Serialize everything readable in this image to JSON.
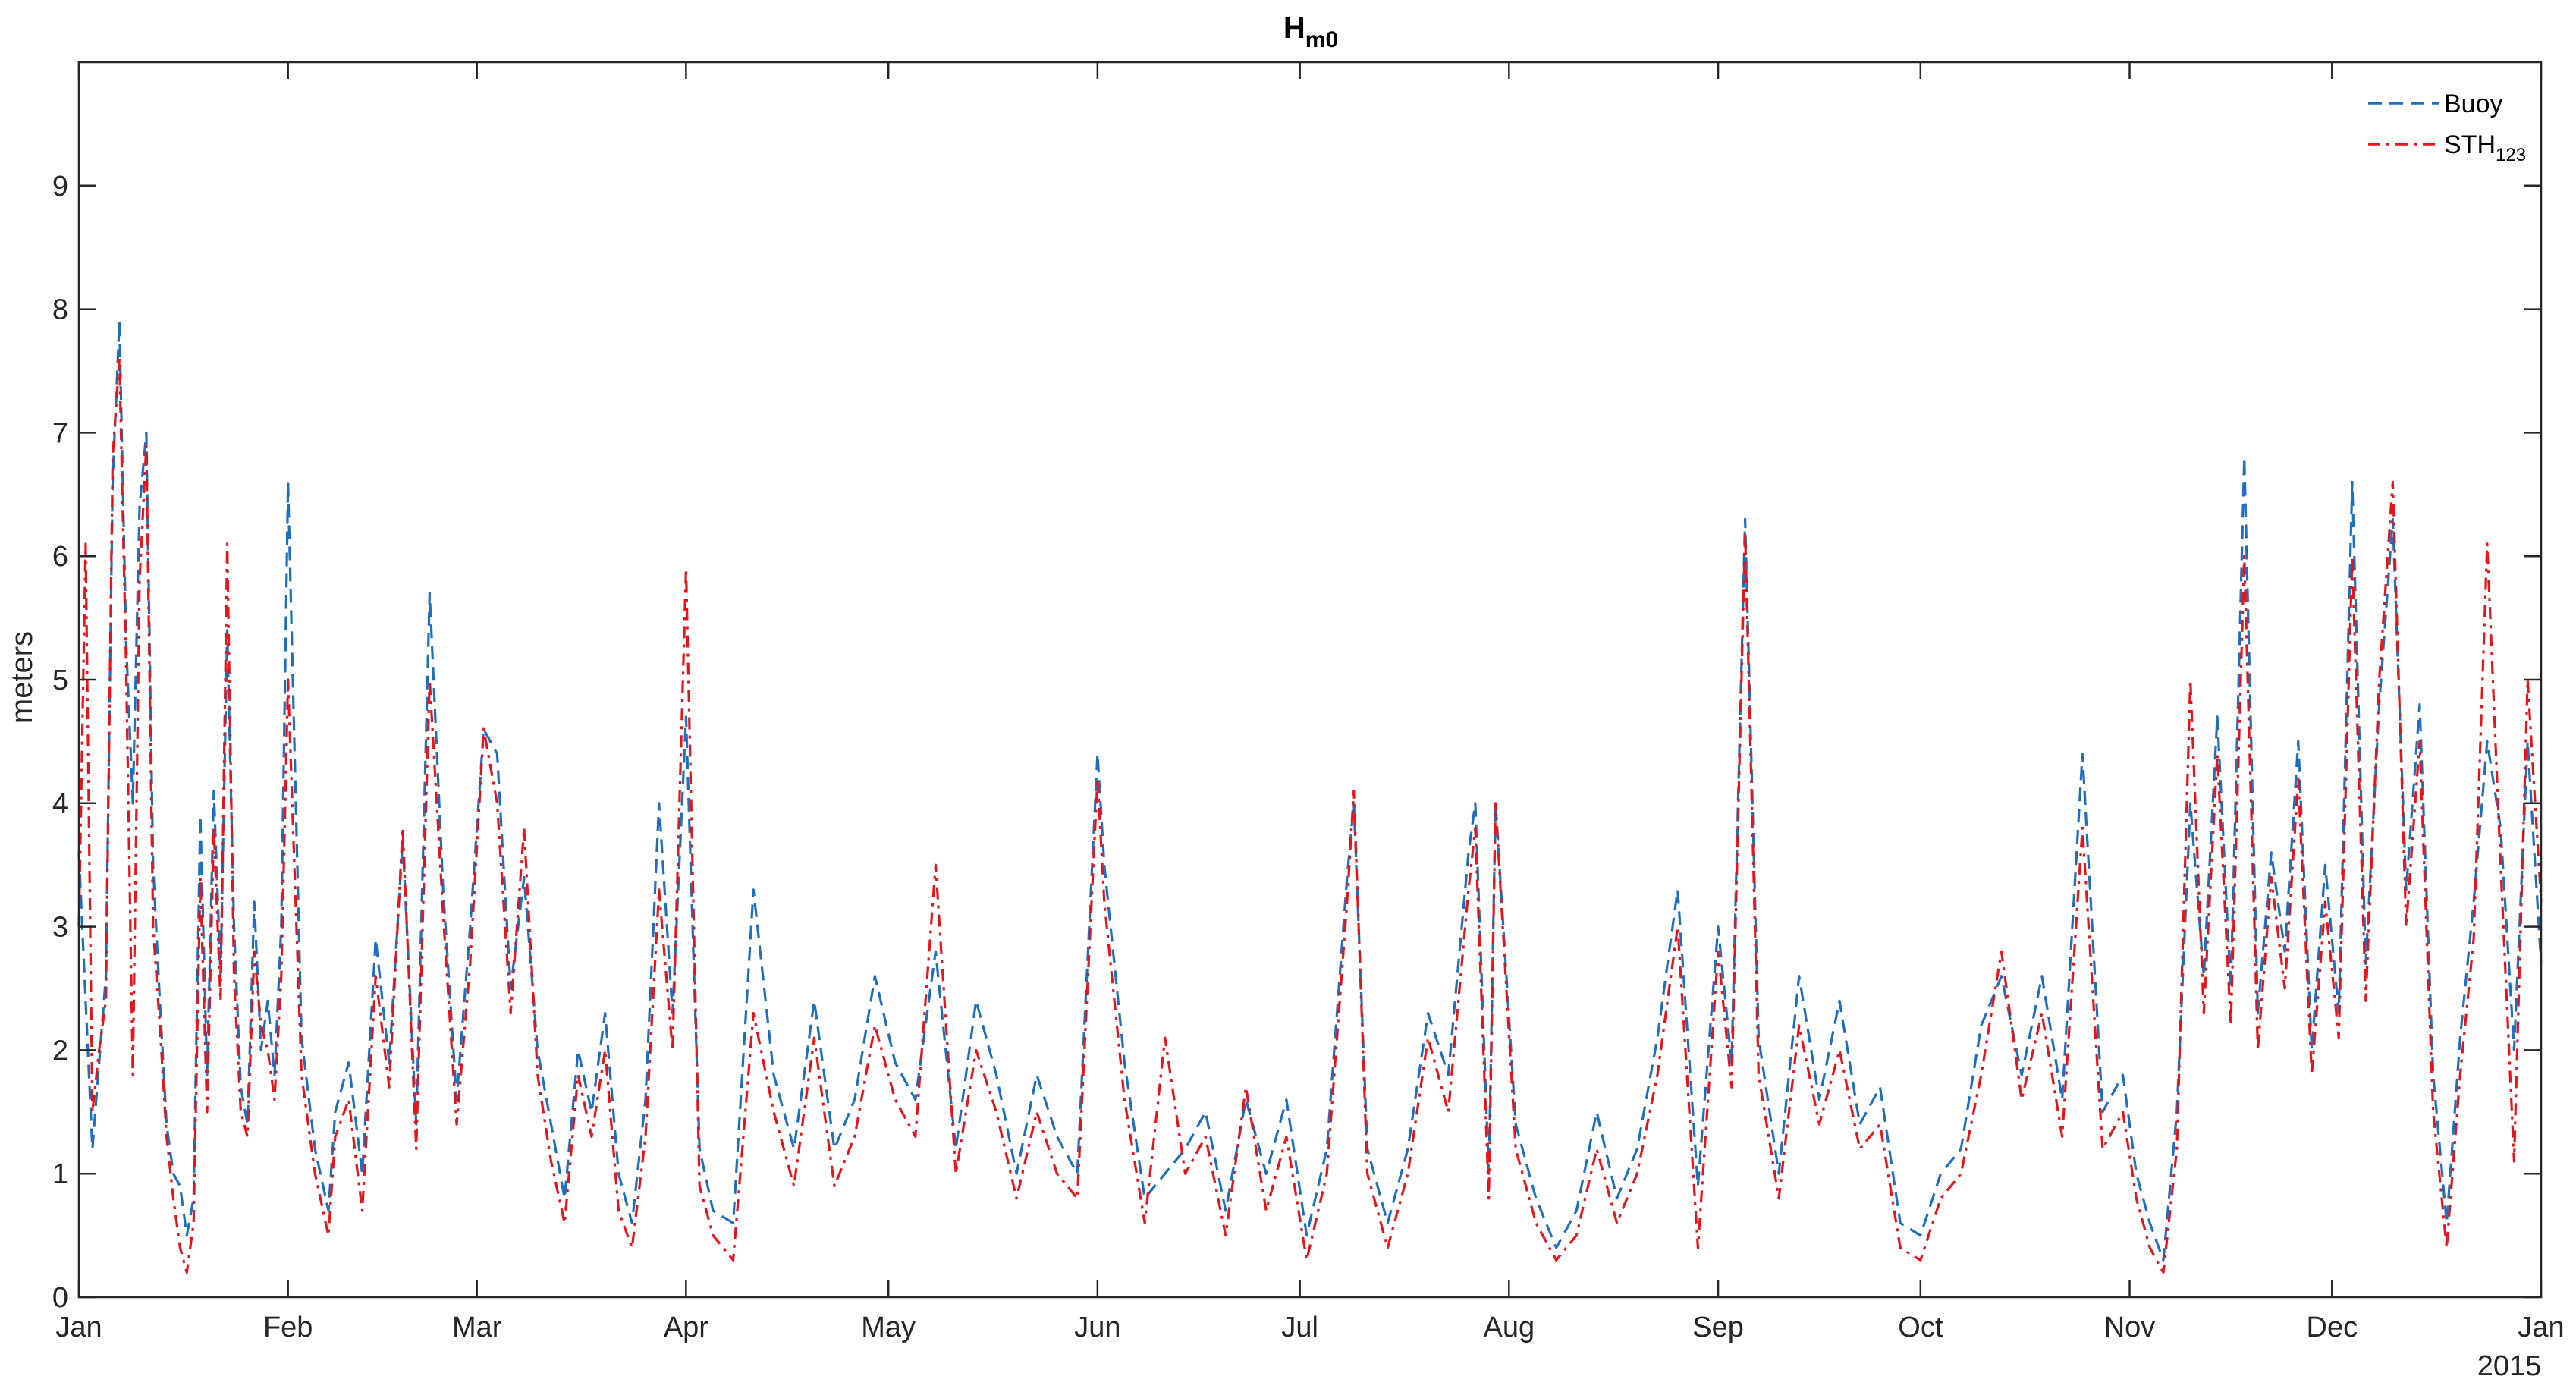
{
  "chart_data": {
    "type": "line",
    "title": "H",
    "title_subscript": "m0",
    "xlabel": "",
    "ylabel": "meters",
    "xlim": [
      "2015-01-01",
      "2016-01-01"
    ],
    "ylim": [
      0,
      10
    ],
    "yticks": [
      0,
      1,
      2,
      3,
      4,
      5,
      6,
      7,
      8,
      9
    ],
    "xticks": [
      {
        "date": "2015-01-01",
        "label": "Jan"
      },
      {
        "date": "2015-02-01",
        "label": "Feb"
      },
      {
        "date": "2015-03-01",
        "label": "Mar"
      },
      {
        "date": "2015-04-01",
        "label": "Apr"
      },
      {
        "date": "2015-05-01",
        "label": "May"
      },
      {
        "date": "2015-06-01",
        "label": "Jun"
      },
      {
        "date": "2015-07-01",
        "label": "Jul"
      },
      {
        "date": "2015-08-01",
        "label": "Aug"
      },
      {
        "date": "2015-09-01",
        "label": "Sep"
      },
      {
        "date": "2015-10-01",
        "label": "Oct"
      },
      {
        "date": "2015-11-01",
        "label": "Nov"
      },
      {
        "date": "2015-12-01",
        "label": "Dec"
      },
      {
        "date": "2016-01-01",
        "label": "Jan"
      }
    ],
    "year_label": "2015",
    "grid": false,
    "legend_position": "top-right",
    "series": [
      {
        "name": "Buoy",
        "legend_label": "Buoy",
        "color": "#1f6fc0",
        "line_style": "dashed",
        "x": [
          "2015-01-01",
          "2015-01-02",
          "2015-01-03",
          "2015-01-04",
          "2015-01-05",
          "2015-01-06",
          "2015-01-07",
          "2015-01-08",
          "2015-01-09",
          "2015-01-10",
          "2015-01-11",
          "2015-01-12",
          "2015-01-13",
          "2015-01-14",
          "2015-01-15",
          "2015-01-16",
          "2015-01-17",
          "2015-01-18",
          "2015-01-19",
          "2015-01-20",
          "2015-01-21",
          "2015-01-22",
          "2015-01-23",
          "2015-01-24",
          "2015-01-25",
          "2015-01-26",
          "2015-01-27",
          "2015-01-28",
          "2015-01-29",
          "2015-01-30",
          "2015-01-31",
          "2015-02-01",
          "2015-02-03",
          "2015-02-05",
          "2015-02-07",
          "2015-02-08",
          "2015-02-10",
          "2015-02-12",
          "2015-02-14",
          "2015-02-16",
          "2015-02-18",
          "2015-02-20",
          "2015-02-22",
          "2015-02-24",
          "2015-02-26",
          "2015-02-28",
          "2015-03-02",
          "2015-03-04",
          "2015-03-06",
          "2015-03-08",
          "2015-03-10",
          "2015-03-12",
          "2015-03-14",
          "2015-03-16",
          "2015-03-18",
          "2015-03-20",
          "2015-03-22",
          "2015-03-24",
          "2015-03-26",
          "2015-03-28",
          "2015-03-30",
          "2015-04-01",
          "2015-04-03",
          "2015-04-05",
          "2015-04-08",
          "2015-04-11",
          "2015-04-14",
          "2015-04-17",
          "2015-04-20",
          "2015-04-23",
          "2015-04-26",
          "2015-04-29",
          "2015-05-02",
          "2015-05-05",
          "2015-05-08",
          "2015-05-11",
          "2015-05-14",
          "2015-05-17",
          "2015-05-20",
          "2015-05-23",
          "2015-05-26",
          "2015-05-29",
          "2015-06-01",
          "2015-06-02",
          "2015-06-05",
          "2015-06-08",
          "2015-06-11",
          "2015-06-14",
          "2015-06-17",
          "2015-06-20",
          "2015-06-23",
          "2015-06-26",
          "2015-06-29",
          "2015-07-02",
          "2015-07-05",
          "2015-07-08",
          "2015-07-09",
          "2015-07-11",
          "2015-07-14",
          "2015-07-17",
          "2015-07-20",
          "2015-07-23",
          "2015-07-26",
          "2015-07-27",
          "2015-07-29",
          "2015-07-30",
          "2015-08-02",
          "2015-08-05",
          "2015-08-08",
          "2015-08-11",
          "2015-08-14",
          "2015-08-17",
          "2015-08-20",
          "2015-08-23",
          "2015-08-26",
          "2015-08-29",
          "2015-09-01",
          "2015-09-03",
          "2015-09-05",
          "2015-09-07",
          "2015-09-10",
          "2015-09-13",
          "2015-09-16",
          "2015-09-19",
          "2015-09-22",
          "2015-09-25",
          "2015-09-28",
          "2015-10-01",
          "2015-10-04",
          "2015-10-07",
          "2015-10-10",
          "2015-10-13",
          "2015-10-16",
          "2015-10-19",
          "2015-10-22",
          "2015-10-25",
          "2015-10-28",
          "2015-10-31",
          "2015-11-02",
          "2015-11-04",
          "2015-11-06",
          "2015-11-08",
          "2015-11-10",
          "2015-11-12",
          "2015-11-14",
          "2015-11-16",
          "2015-11-18",
          "2015-11-20",
          "2015-11-22",
          "2015-11-24",
          "2015-11-26",
          "2015-11-28",
          "2015-11-30",
          "2015-12-02",
          "2015-12-04",
          "2015-12-06",
          "2015-12-08",
          "2015-12-10",
          "2015-12-12",
          "2015-12-14",
          "2015-12-16",
          "2015-12-18",
          "2015-12-20",
          "2015-12-22",
          "2015-12-24",
          "2015-12-26",
          "2015-12-28",
          "2015-12-30",
          "2016-01-01"
        ],
        "values": [
          3.6,
          2.4,
          1.2,
          1.9,
          2.6,
          6.6,
          7.9,
          5.3,
          4.0,
          6.4,
          7.0,
          3.5,
          2.4,
          1.4,
          1.0,
          0.9,
          0.5,
          0.8,
          3.9,
          1.8,
          4.1,
          2.6,
          5.4,
          3.0,
          1.7,
          1.4,
          3.2,
          2.0,
          2.4,
          1.8,
          3.0,
          6.6,
          2.1,
          1.2,
          0.7,
          1.5,
          1.9,
          1.0,
          2.9,
          1.9,
          3.7,
          1.4,
          5.7,
          3.3,
          1.6,
          3.0,
          4.6,
          4.4,
          2.5,
          3.4,
          2.0,
          1.4,
          0.8,
          2.0,
          1.5,
          2.3,
          1.0,
          0.6,
          1.6,
          4.0,
          2.3,
          4.7,
          1.2,
          0.7,
          0.6,
          3.3,
          1.8,
          1.2,
          2.4,
          1.2,
          1.6,
          2.6,
          1.9,
          1.6,
          2.8,
          1.2,
          2.4,
          1.8,
          1.0,
          1.8,
          1.3,
          1.0,
          4.4,
          3.5,
          1.9,
          0.8,
          1.0,
          1.2,
          1.5,
          0.7,
          1.6,
          1.0,
          1.6,
          0.5,
          1.2,
          3.4,
          4.0,
          1.2,
          0.6,
          1.2,
          2.3,
          1.8,
          3.6,
          4.0,
          1.0,
          4.0,
          1.4,
          0.8,
          0.4,
          0.7,
          1.5,
          0.8,
          1.2,
          2.1,
          3.3,
          0.9,
          3.0,
          1.9,
          6.3,
          2.1,
          1.0,
          2.6,
          1.6,
          2.4,
          1.4,
          1.7,
          0.6,
          0.5,
          1.0,
          1.2,
          2.2,
          2.6,
          1.8,
          2.6,
          1.6,
          4.4,
          1.5,
          1.8,
          1.0,
          0.6,
          0.3,
          1.5,
          4.0,
          2.6,
          4.7,
          2.5,
          6.8,
          2.3,
          3.6,
          2.8,
          4.5,
          2.0,
          3.5,
          2.3,
          6.6,
          2.7,
          4.8,
          6.3,
          3.3,
          4.8,
          1.8,
          0.6,
          2.1,
          3.2,
          4.5,
          3.8,
          2.0,
          4.5,
          2.7
        ]
      },
      {
        "name": "STH123",
        "legend_label": "STH",
        "legend_subscript": "123",
        "color": "#e8141a",
        "line_style": "dashdot",
        "x": [
          "2015-01-01",
          "2015-01-02",
          "2015-01-03",
          "2015-01-04",
          "2015-01-05",
          "2015-01-06",
          "2015-01-07",
          "2015-01-08",
          "2015-01-09",
          "2015-01-10",
          "2015-01-11",
          "2015-01-12",
          "2015-01-13",
          "2015-01-14",
          "2015-01-15",
          "2015-01-16",
          "2015-01-17",
          "2015-01-18",
          "2015-01-19",
          "2015-01-20",
          "2015-01-21",
          "2015-01-22",
          "2015-01-23",
          "2015-01-24",
          "2015-01-25",
          "2015-01-26",
          "2015-01-27",
          "2015-01-28",
          "2015-01-29",
          "2015-01-30",
          "2015-01-31",
          "2015-02-01",
          "2015-02-03",
          "2015-02-05",
          "2015-02-07",
          "2015-02-08",
          "2015-02-10",
          "2015-02-12",
          "2015-02-14",
          "2015-02-16",
          "2015-02-18",
          "2015-02-20",
          "2015-02-22",
          "2015-02-24",
          "2015-02-26",
          "2015-02-28",
          "2015-03-02",
          "2015-03-04",
          "2015-03-06",
          "2015-03-08",
          "2015-03-10",
          "2015-03-12",
          "2015-03-14",
          "2015-03-16",
          "2015-03-18",
          "2015-03-20",
          "2015-03-22",
          "2015-03-24",
          "2015-03-26",
          "2015-03-28",
          "2015-03-30",
          "2015-04-01",
          "2015-04-03",
          "2015-04-05",
          "2015-04-08",
          "2015-04-11",
          "2015-04-14",
          "2015-04-17",
          "2015-04-20",
          "2015-04-23",
          "2015-04-26",
          "2015-04-29",
          "2015-05-02",
          "2015-05-05",
          "2015-05-08",
          "2015-05-11",
          "2015-05-14",
          "2015-05-17",
          "2015-05-20",
          "2015-05-23",
          "2015-05-26",
          "2015-05-29",
          "2015-06-01",
          "2015-06-02",
          "2015-06-05",
          "2015-06-08",
          "2015-06-11",
          "2015-06-14",
          "2015-06-17",
          "2015-06-20",
          "2015-06-23",
          "2015-06-26",
          "2015-06-29",
          "2015-07-02",
          "2015-07-05",
          "2015-07-08",
          "2015-07-09",
          "2015-07-11",
          "2015-07-14",
          "2015-07-17",
          "2015-07-20",
          "2015-07-23",
          "2015-07-26",
          "2015-07-27",
          "2015-07-29",
          "2015-07-30",
          "2015-08-02",
          "2015-08-05",
          "2015-08-08",
          "2015-08-11",
          "2015-08-14",
          "2015-08-17",
          "2015-08-20",
          "2015-08-23",
          "2015-08-26",
          "2015-08-29",
          "2015-09-01",
          "2015-09-03",
          "2015-09-05",
          "2015-09-07",
          "2015-09-10",
          "2015-09-13",
          "2015-09-16",
          "2015-09-19",
          "2015-09-22",
          "2015-09-25",
          "2015-09-28",
          "2015-10-01",
          "2015-10-04",
          "2015-10-07",
          "2015-10-10",
          "2015-10-13",
          "2015-10-16",
          "2015-10-19",
          "2015-10-22",
          "2015-10-25",
          "2015-10-28",
          "2015-10-31",
          "2015-11-02",
          "2015-11-04",
          "2015-11-06",
          "2015-11-08",
          "2015-11-10",
          "2015-11-12",
          "2015-11-14",
          "2015-11-16",
          "2015-11-18",
          "2015-11-20",
          "2015-11-22",
          "2015-11-24",
          "2015-11-26",
          "2015-11-28",
          "2015-11-30",
          "2015-12-02",
          "2015-12-04",
          "2015-12-06",
          "2015-12-08",
          "2015-12-10",
          "2015-12-12",
          "2015-12-14",
          "2015-12-16",
          "2015-12-18",
          "2015-12-20",
          "2015-12-22",
          "2015-12-24",
          "2015-12-26",
          "2015-12-28",
          "2015-12-30",
          "2016-01-01"
        ],
        "values": [
          3.0,
          6.1,
          1.5,
          2.0,
          2.4,
          6.8,
          7.6,
          5.1,
          1.8,
          5.8,
          6.9,
          3.0,
          2.2,
          1.3,
          0.8,
          0.4,
          0.2,
          0.6,
          3.4,
          1.5,
          3.8,
          2.4,
          6.1,
          2.6,
          1.5,
          1.3,
          2.8,
          2.2,
          2.0,
          1.6,
          2.6,
          5.0,
          1.8,
          1.0,
          0.5,
          1.3,
          1.6,
          0.7,
          2.6,
          1.7,
          3.8,
          1.2,
          5.0,
          3.1,
          1.4,
          2.7,
          4.6,
          4.0,
          2.3,
          3.8,
          1.8,
          1.1,
          0.6,
          1.8,
          1.3,
          2.0,
          0.7,
          0.4,
          1.3,
          3.3,
          2.0,
          5.9,
          0.9,
          0.5,
          0.3,
          2.3,
          1.5,
          0.9,
          2.1,
          0.9,
          1.3,
          2.2,
          1.6,
          1.3,
          3.5,
          1.0,
          2.0,
          1.5,
          0.8,
          1.5,
          1.0,
          0.8,
          4.2,
          3.2,
          1.6,
          0.6,
          2.1,
          1.0,
          1.3,
          0.5,
          1.7,
          0.7,
          1.3,
          0.3,
          1.0,
          3.2,
          4.1,
          1.0,
          0.4,
          1.0,
          2.1,
          1.5,
          3.3,
          3.8,
          0.8,
          4.0,
          1.2,
          0.6,
          0.3,
          0.5,
          1.2,
          0.6,
          1.0,
          1.8,
          3.0,
          0.4,
          2.8,
          1.7,
          6.2,
          1.8,
          0.8,
          2.2,
          1.4,
          2.0,
          1.2,
          1.4,
          0.4,
          0.3,
          0.8,
          1.0,
          1.8,
          2.8,
          1.6,
          2.3,
          1.3,
          3.8,
          1.2,
          1.5,
          0.8,
          0.4,
          0.2,
          1.2,
          5.0,
          2.3,
          4.4,
          2.2,
          6.0,
          2.0,
          3.4,
          2.5,
          4.2,
          1.8,
          3.2,
          2.1,
          6.0,
          2.4,
          5.0,
          6.6,
          3.0,
          4.5,
          1.5,
          0.4,
          1.8,
          2.9,
          6.1,
          3.5,
          1.1,
          5.0,
          3.2
        ]
      }
    ]
  }
}
